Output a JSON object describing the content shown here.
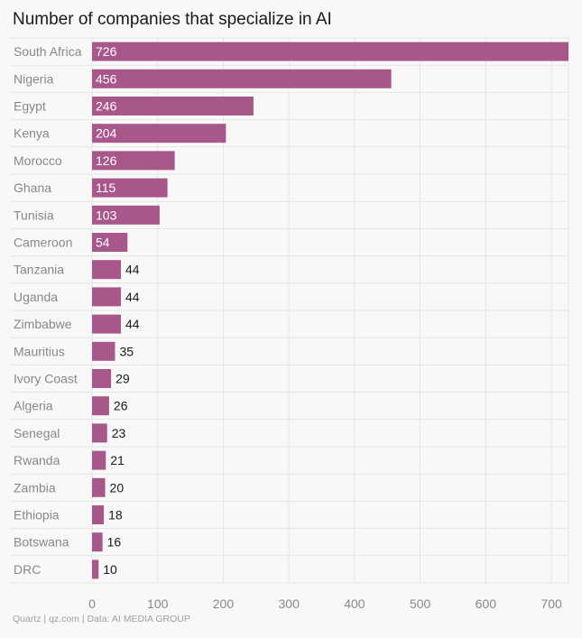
{
  "chart_data": {
    "type": "bar",
    "orientation": "horizontal",
    "title": "Number of companies that specialize in AI",
    "categories": [
      "South Africa",
      "Nigeria",
      "Egypt",
      "Kenya",
      "Morocco",
      "Ghana",
      "Tunisia",
      "Cameroon",
      "Tanzania",
      "Uganda",
      "Zimbabwe",
      "Mauritius",
      "Ivory Coast",
      "Algeria",
      "Senegal",
      "Rwanda",
      "Zambia",
      "Ethiopia",
      "Botswana",
      "DRC"
    ],
    "values": [
      726,
      456,
      246,
      204,
      126,
      115,
      103,
      54,
      44,
      44,
      44,
      35,
      29,
      26,
      23,
      21,
      20,
      18,
      16,
      10
    ],
    "value_labels": [
      "726",
      "456",
      "246",
      "204",
      "126",
      "115",
      "103",
      "54",
      "44",
      "44",
      "44",
      "35",
      "29",
      "26",
      "23",
      "21",
      "20",
      "18",
      "16",
      "10"
    ],
    "xticks": [
      0,
      100,
      200,
      300,
      400,
      500,
      600,
      700
    ],
    "xtick_labels": [
      "0",
      "100",
      "200",
      "300",
      "400",
      "500",
      "600",
      "700"
    ],
    "xlim": [
      0,
      726
    ],
    "xlabel": "",
    "ylabel": "",
    "grid": true,
    "bar_color": "#a8578a"
  },
  "footer": "Quartz | qz.com | Data: AI MEDIA GROUP"
}
